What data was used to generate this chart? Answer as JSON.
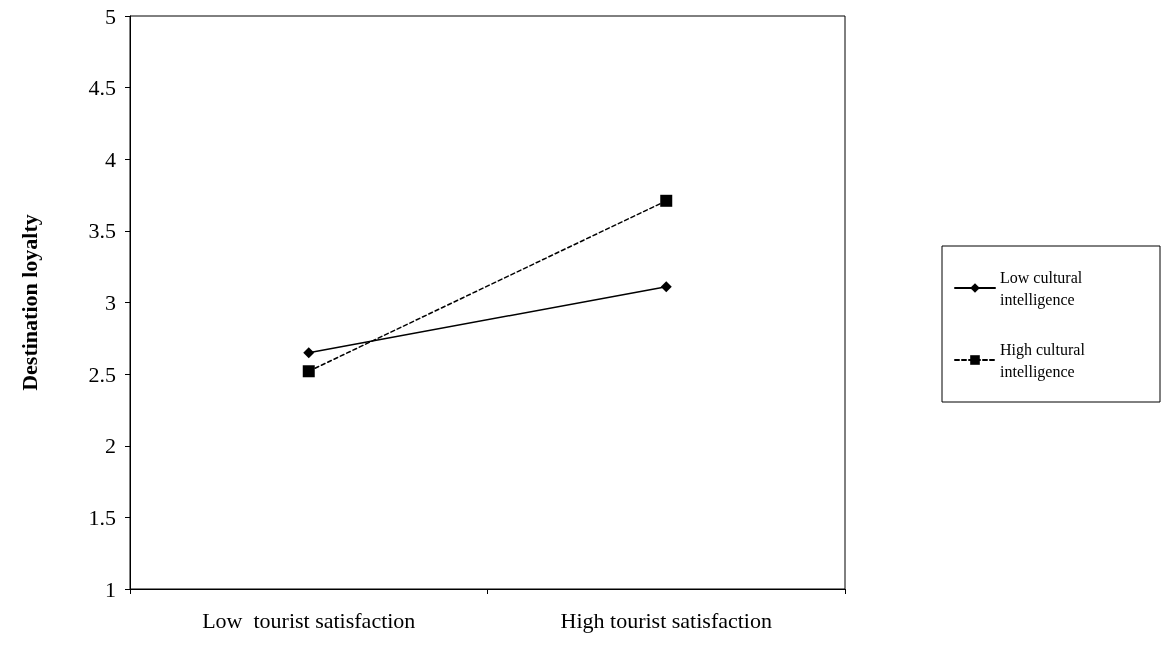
{
  "chart_data": {
    "type": "line",
    "ylabel": "Destination loyalty",
    "categories": [
      "Low  tourist satisfaction",
      "High tourist satisfaction"
    ],
    "series": [
      {
        "name": "Low cultural intelligence",
        "color": "#000000",
        "values": [
          2.65,
          3.11
        ],
        "marker": "diamond",
        "line_style": "solid"
      },
      {
        "name": "High cultural intelligence",
        "color": "#000000",
        "values": [
          2.52,
          3.71
        ],
        "marker": "square",
        "line_style": "dashed"
      }
    ],
    "ylim": [
      1,
      5
    ],
    "yticks": [
      1,
      1.5,
      2,
      2.5,
      3,
      3.5,
      4,
      4.5,
      5
    ],
    "grid": false,
    "legend": "right"
  }
}
